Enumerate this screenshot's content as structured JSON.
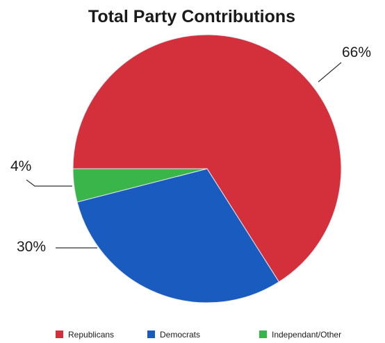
{
  "chart_data": {
    "type": "pie",
    "title": "Total Party Contributions",
    "slices": [
      {
        "name": "Republicans",
        "value": 66,
        "label": "66%",
        "color": "#d3303c"
      },
      {
        "name": "Democrats",
        "value": 30,
        "label": "30%",
        "color": "#1a5bbf"
      },
      {
        "name": "Independant/Other",
        "value": 4,
        "label": "4%",
        "color": "#39b54a"
      }
    ],
    "legend_position": "bottom"
  }
}
